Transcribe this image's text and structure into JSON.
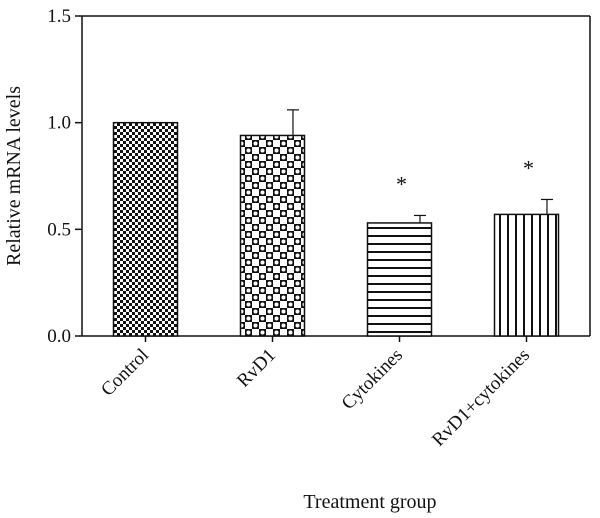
{
  "chart_data": {
    "type": "bar",
    "categories": [
      "Control",
      "RvD1",
      "Cytokines",
      "RvD1+cytokines"
    ],
    "values": [
      1.0,
      0.94,
      0.53,
      0.57
    ],
    "errors": [
      0.0,
      0.12,
      0.035,
      0.07
    ],
    "significance": [
      "",
      "",
      "*",
      "*"
    ],
    "patterns": [
      "fine-checker",
      "dotted-checker",
      "horizontal-lines",
      "vertical-lines"
    ],
    "xlabel": "Treatment group",
    "ylabel": "Relative mRNA levels",
    "ylim": [
      0,
      1.5
    ],
    "yticks": [
      "0.0",
      "0.5",
      "1.0",
      "1.5"
    ],
    "grid": false,
    "legend": "none"
  }
}
